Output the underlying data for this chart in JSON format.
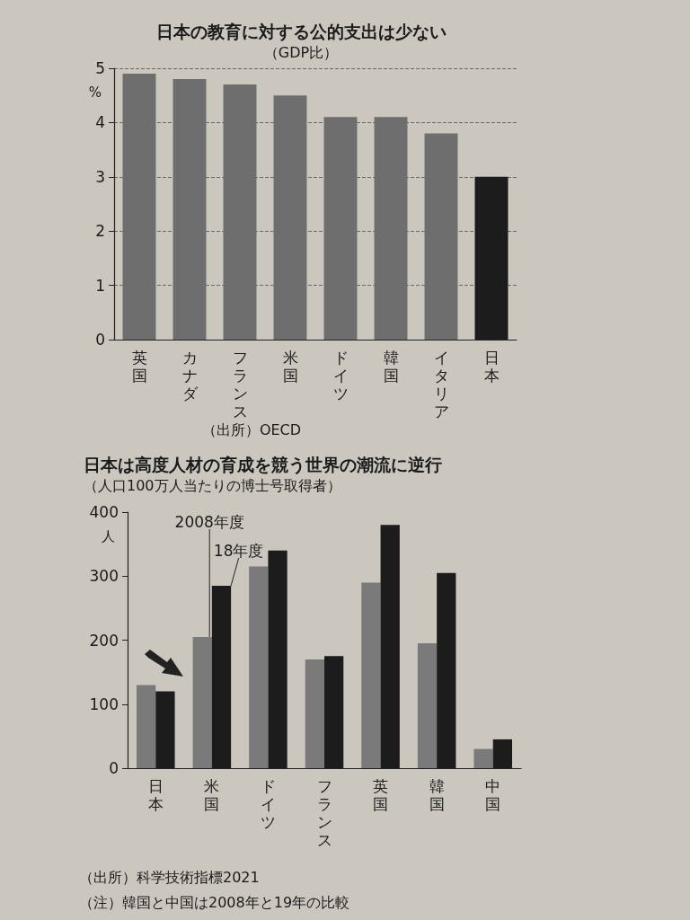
{
  "chart_data": [
    {
      "type": "bar",
      "title": "日本の教育に対する公的支出は少ない",
      "subtitle": "（GDP比）",
      "ylabel": "%",
      "categories": [
        "英国",
        "カナダ",
        "フランス",
        "米国",
        "ドイツ",
        "韓国",
        "イタリア",
        "日本"
      ],
      "values": [
        4.9,
        4.8,
        4.7,
        4.5,
        4.1,
        4.1,
        3.8,
        3.0
      ],
      "colors": [
        "#6e6e6e",
        "#6e6e6e",
        "#6e6e6e",
        "#6e6e6e",
        "#6e6e6e",
        "#6e6e6e",
        "#6e6e6e",
        "#1c1c1c"
      ],
      "ylim": [
        0,
        5
      ],
      "yticks": [
        0,
        1,
        2,
        3,
        4,
        5
      ],
      "grid": "y",
      "legend": false,
      "annotations": [
        "（出所）OECD"
      ]
    },
    {
      "type": "bar",
      "title": "日本は高度人材の育成を競う世界の潮流に逆行",
      "subtitle": "（人口100万人当たりの博士号取得者）",
      "ylabel": "人",
      "categories": [
        "日本",
        "米国",
        "ドイツ",
        "フランス",
        "英国",
        "韓国",
        "中国"
      ],
      "series": [
        {
          "name": "2008年度",
          "color": "#7a7a7a",
          "values": [
            130,
            205,
            315,
            170,
            290,
            195,
            30
          ]
        },
        {
          "name": "18年度",
          "color": "#1c1c1c",
          "values": [
            120,
            285,
            340,
            175,
            380,
            305,
            45
          ]
        }
      ],
      "ylim": [
        0,
        400
      ],
      "yticks": [
        0,
        100,
        200,
        300,
        400
      ],
      "grid": false,
      "legend": false,
      "annotations": [
        "（出所）科学技術指標2021",
        "（注）韓国と中国は2008年と19年の比較"
      ]
    }
  ]
}
